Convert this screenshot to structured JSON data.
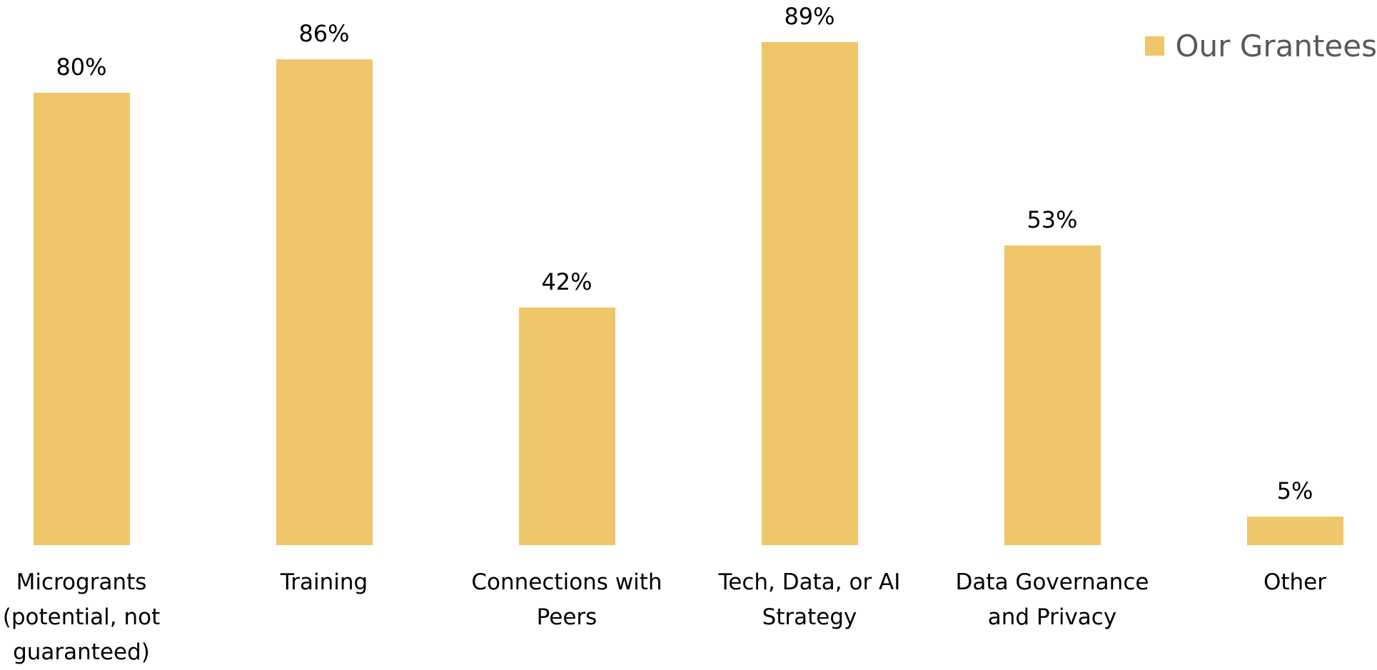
{
  "chart_data": {
    "type": "bar",
    "categories": [
      "Microgrants (potential, not guaranteed)",
      "Training",
      "Connections with Peers",
      "Tech, Data, or AI Strategy",
      "Data Governance and Privacy",
      "Other"
    ],
    "series": [
      {
        "name": "Our Grantees",
        "color": "#f0c66b",
        "values": [
          80,
          86,
          42,
          89,
          53,
          5
        ],
        "value_labels": [
          "80%",
          "86%",
          "42%",
          "89%",
          "53%",
          "5%"
        ]
      }
    ],
    "legend": "top-right"
  }
}
